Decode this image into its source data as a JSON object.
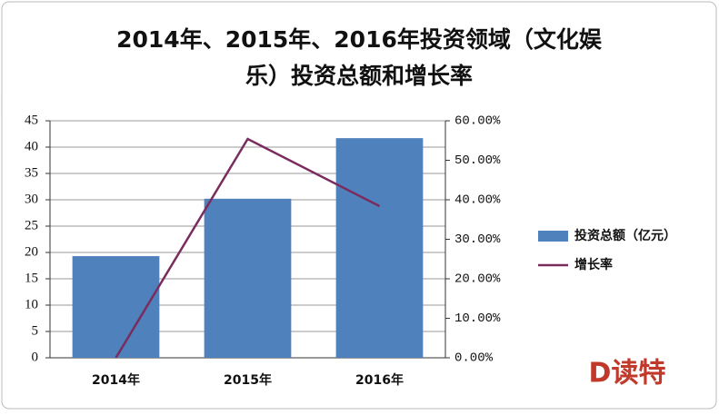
{
  "chart_data": {
    "type": "bar_line",
    "title": [
      "2014年、2015年、2016年投资领域（文化娱",
      "乐）投资总额和增长率"
    ],
    "categories": [
      "2014年",
      "2015年",
      "2016年"
    ],
    "series": [
      {
        "name": "投资总额（亿元）",
        "type": "bar",
        "color": "#4f81bd",
        "values": [
          19.3,
          30.2,
          41.7
        ]
      },
      {
        "name": "增长率",
        "type": "line",
        "axis": "y2",
        "color": "#7b2c5e",
        "values": [
          0,
          55.4,
          38.4
        ]
      }
    ],
    "ylim": [
      0,
      45
    ],
    "yticks": [
      0,
      5,
      10,
      15,
      20,
      25,
      30,
      35,
      40,
      45
    ],
    "y2lim": [
      0,
      60
    ],
    "y2ticks": [
      {
        "value": 0,
        "label": "0.00%"
      },
      {
        "value": 10,
        "label": "10.00%"
      },
      {
        "value": 20,
        "label": "20.00%"
      },
      {
        "value": 30,
        "label": "30.00%"
      },
      {
        "value": 40,
        "label": "40.00%"
      },
      {
        "value": 50,
        "label": "50.00%"
      },
      {
        "value": 60,
        "label": "60.00%"
      }
    ],
    "grid": true,
    "legend": "right",
    "watermark": "D读特"
  }
}
